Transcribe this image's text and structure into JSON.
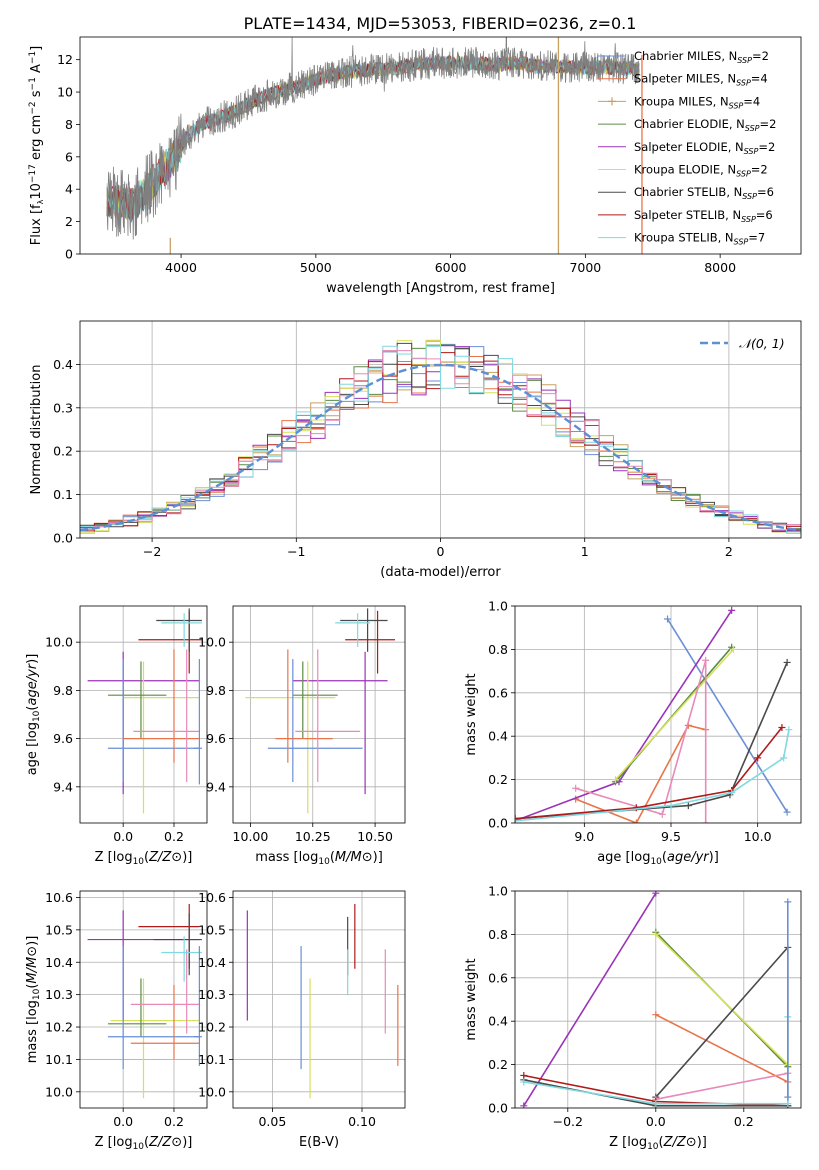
{
  "figure": {
    "suptitle": "PLATE=1434, MJD=53053, FIBERID=0236, z=0.1"
  },
  "chart_data": [
    {
      "id": "spectrum",
      "type": "line",
      "xlabel": "wavelength [Angstrom, rest frame]",
      "ylabel_parts": [
        "Flux [f",
        "λ",
        "10",
        "−17",
        " erg cm",
        "−2",
        " s",
        "−1",
        " A",
        "−1",
        "]"
      ],
      "xlim": [
        3250,
        8600
      ],
      "ylim": [
        0,
        13.4
      ],
      "xticks": [
        4000,
        5000,
        6000,
        7000,
        8000
      ],
      "yticks": [
        0,
        2,
        4,
        6,
        8,
        10,
        12
      ],
      "grid": false,
      "legend_position": "right",
      "legend": [
        {
          "label": "Chabrier MILES, N",
          "sub": "SSP",
          "suffix": "=2",
          "color": "#6a8fd6",
          "marker": "none"
        },
        {
          "label": "Salpeter MILES, N",
          "sub": "SSP",
          "suffix": "=4",
          "color": "#e8744a",
          "marker": "none"
        },
        {
          "label": "Kroupa MILES, N",
          "sub": "SSP",
          "suffix": "=4",
          "color": "#c8a060",
          "marker": "plus"
        },
        {
          "label": "Chabrier ELODIE, N",
          "sub": "SSP",
          "suffix": "=2",
          "color": "#5c8c46",
          "marker": "none"
        },
        {
          "label": "Salpeter ELODIE, N",
          "sub": "SSP",
          "suffix": "=2",
          "color": "#9b33b8",
          "marker": "none"
        },
        {
          "label": "Kroupa ELODIE, N",
          "sub": "SSP",
          "suffix": "=2",
          "color": "#d6e05a",
          "marker": "none"
        },
        {
          "label": "Chabrier STELIB, N",
          "sub": "SSP",
          "suffix": "=6",
          "color": "#4a4a4a",
          "marker": "none"
        },
        {
          "label": "Salpeter STELIB, N",
          "sub": "SSP",
          "suffix": "=6",
          "color": "#b01a1a",
          "marker": "none"
        },
        {
          "label": "Kroupa STELIB, N",
          "sub": "SSP",
          "suffix": "=7",
          "color": "#7fd9e0",
          "marker": "none"
        }
      ],
      "continuum": {
        "x": [
          3450,
          3550,
          3650,
          3750,
          3850,
          3950,
          4050,
          4150,
          4250,
          4350,
          4450,
          4550,
          4650,
          4750,
          4850,
          4950,
          5050,
          5150,
          5300,
          5450,
          5600,
          5750,
          5900,
          6050,
          6200,
          6350,
          6500,
          6650,
          6800,
          6950,
          7100,
          7250,
          7400
        ],
        "y": [
          3.3,
          3.2,
          3.0,
          4.0,
          5.0,
          6.0,
          7.3,
          8.0,
          8.3,
          8.6,
          9.0,
          9.5,
          9.8,
          10.1,
          10.3,
          10.6,
          10.9,
          11.1,
          11.3,
          11.4,
          11.5,
          11.7,
          11.8,
          11.8,
          11.8,
          11.7,
          11.8,
          11.6,
          11.6,
          11.5,
          11.5,
          11.5,
          11.4
        ]
      },
      "noise_series": {
        "name": "",
        "color": "#808080"
      },
      "vertical_spikes": [
        {
          "x": 6800,
          "color": "#c8a060",
          "y_top": 13.4
        },
        {
          "x": 7420,
          "color": "#e8744a",
          "y_top": 12.3
        },
        {
          "x": 3920,
          "color": "#c8a060",
          "y_top": 1.0
        }
      ]
    },
    {
      "id": "residual-histogram",
      "type": "line",
      "xlabel": "(data-model)/error",
      "ylabel": "Normed distribution",
      "xlim": [
        -2.5,
        2.5
      ],
      "ylim": [
        0,
        0.5
      ],
      "xticks": [
        -2,
        -1,
        0,
        1,
        2
      ],
      "yticks": [
        0.0,
        0.1,
        0.2,
        0.3,
        0.4
      ],
      "grid": true,
      "legend_position": "top-right",
      "legend_label": "𝒩(0, 1)",
      "gaussian_color": "#5b8fd6",
      "bin_width": 0.1,
      "colors": [
        "#6a8fd6",
        "#e8744a",
        "#c8a060",
        "#5c8c46",
        "#9b33b8",
        "#d6e05a",
        "#4a4a4a",
        "#b01a1a",
        "#7fd9e0",
        "#e88ab8"
      ]
    },
    {
      "id": "age-vs-z",
      "type": "scatter",
      "xlabel": "Z [log10(Z/Z⊙)]",
      "ylabel": "age  [log10(age/yr)]",
      "xlim": [
        -0.17,
        0.33
      ],
      "ylim": [
        9.25,
        10.15
      ],
      "xticks": [
        0.0,
        0.2
      ],
      "yticks": [
        9.4,
        9.6,
        9.8,
        10.0
      ],
      "grid": true,
      "points": [
        {
          "x": 0.0,
          "xlo": -0.14,
          "xhi": 0.3,
          "y": 9.84,
          "ylo": 9.37,
          "yhi": 9.96,
          "color": "#9b33b8"
        },
        {
          "x": 0.08,
          "xlo": 0.0,
          "xhi": 0.3,
          "y": 9.77,
          "ylo": 9.29,
          "yhi": 9.92,
          "color": "#d6e05a"
        },
        {
          "x": 0.07,
          "xlo": -0.06,
          "xhi": 0.17,
          "y": 9.78,
          "ylo": 9.6,
          "yhi": 9.92,
          "color": "#5c8c46"
        },
        {
          "x": 0.0,
          "xlo": -0.06,
          "xhi": 0.3,
          "y": 9.56,
          "ylo": 9.42,
          "yhi": 9.93,
          "color": "#6a8fd6"
        },
        {
          "x": 0.2,
          "xlo": 0.0,
          "xhi": 0.3,
          "y": 9.6,
          "ylo": 9.5,
          "yhi": 9.97,
          "color": "#e8744a"
        },
        {
          "x": 0.25,
          "xlo": 0.04,
          "xhi": 0.3,
          "y": 9.63,
          "ylo": 9.42,
          "yhi": 9.97,
          "color": "#e88ab8"
        },
        {
          "x": 0.26,
          "xlo": 0.06,
          "xhi": 0.31,
          "y": 10.01,
          "ylo": 9.87,
          "yhi": 10.13,
          "color": "#b01a1a"
        },
        {
          "x": 0.26,
          "xlo": 0.13,
          "xhi": 0.31,
          "y": 10.09,
          "ylo": 9.96,
          "yhi": 10.14,
          "color": "#4a4a4a"
        },
        {
          "x": 0.24,
          "xlo": 0.15,
          "xhi": 0.31,
          "y": 10.08,
          "ylo": 9.98,
          "yhi": 10.12,
          "color": "#7fd9e0"
        },
        {
          "x": 0.3,
          "xlo": 0.28,
          "xhi": 0.31,
          "y": 9.56,
          "ylo": 9.41,
          "yhi": 9.93,
          "color": "#6a8fd6"
        }
      ]
    },
    {
      "id": "age-vs-mass",
      "type": "scatter",
      "xlabel": "mass [log10(M/M⊙)]",
      "ylabel": "",
      "xlim": [
        9.93,
        10.62
      ],
      "ylim": [
        9.25,
        10.15
      ],
      "xticks": [
        10.0,
        10.25,
        10.5
      ],
      "yticks": [
        9.4,
        9.6,
        9.8,
        10.0
      ],
      "grid": true,
      "points": [
        {
          "x": 10.46,
          "xlo": 10.17,
          "xhi": 10.55,
          "y": 9.84,
          "ylo": 9.37,
          "yhi": 9.96,
          "color": "#9b33b8"
        },
        {
          "x": 10.23,
          "xlo": 9.98,
          "xhi": 10.34,
          "y": 9.77,
          "ylo": 9.29,
          "yhi": 9.92,
          "color": "#d6e05a"
        },
        {
          "x": 10.21,
          "xlo": 10.17,
          "xhi": 10.35,
          "y": 9.78,
          "ylo": 9.6,
          "yhi": 9.92,
          "color": "#5c8c46"
        },
        {
          "x": 10.17,
          "xlo": 10.07,
          "xhi": 10.45,
          "y": 9.56,
          "ylo": 9.42,
          "yhi": 9.93,
          "color": "#6a8fd6"
        },
        {
          "x": 10.15,
          "xlo": 10.1,
          "xhi": 10.33,
          "y": 9.6,
          "ylo": 9.5,
          "yhi": 9.97,
          "color": "#e8744a"
        },
        {
          "x": 10.27,
          "xlo": 10.18,
          "xhi": 10.44,
          "y": 9.63,
          "ylo": 9.42,
          "yhi": 9.97,
          "color": "#e88ab8"
        },
        {
          "x": 10.51,
          "xlo": 10.38,
          "xhi": 10.58,
          "y": 10.01,
          "ylo": 9.87,
          "yhi": 10.13,
          "color": "#b01a1a"
        },
        {
          "x": 10.47,
          "xlo": 10.36,
          "xhi": 10.55,
          "y": 10.09,
          "ylo": 9.96,
          "yhi": 10.14,
          "color": "#4a4a4a"
        },
        {
          "x": 10.43,
          "xlo": 10.34,
          "xhi": 10.48,
          "y": 10.08,
          "ylo": 9.98,
          "yhi": 10.12,
          "color": "#7fd9e0"
        }
      ]
    },
    {
      "id": "weight-vs-age",
      "type": "line",
      "xlabel": "age  [log10(age/yr)]",
      "ylabel": "mass weight",
      "xlim": [
        8.6,
        10.25
      ],
      "ylim": [
        0,
        1.0
      ],
      "xticks": [
        9.0,
        9.5,
        10.0
      ],
      "yticks": [
        0.0,
        0.2,
        0.4,
        0.6,
        0.8,
        1.0
      ],
      "grid": true,
      "series": [
        {
          "x": [
            9.48,
            10.17
          ],
          "y": [
            0.94,
            0.05
          ],
          "color": "#6a8fd6"
        },
        {
          "x": [
            8.95,
            9.3,
            9.6,
            9.7
          ],
          "y": [
            0.11,
            0.0,
            0.45,
            0.43
          ],
          "color": "#e8744a"
        },
        {
          "x": [
            8.6,
            9.2,
            9.85
          ],
          "y": [
            0.01,
            0.19,
            0.98
          ],
          "color": "#9b33b8"
        },
        {
          "x": [
            9.18,
            9.85
          ],
          "y": [
            0.19,
            0.81
          ],
          "color": "#5c8c46"
        },
        {
          "x": [
            9.18,
            9.86
          ],
          "y": [
            0.2,
            0.8
          ],
          "color": "#d6e05a"
        },
        {
          "x": [
            8.95,
            9.45,
            9.7,
            9.7
          ],
          "y": [
            0.16,
            0.04,
            0.75,
            0.0
          ],
          "color": "#e88ab8"
        },
        {
          "x": [
            8.6,
            9.6,
            9.84,
            10.17
          ],
          "y": [
            0.02,
            0.08,
            0.13,
            0.74
          ],
          "color": "#4a4a4a"
        },
        {
          "x": [
            8.6,
            9.3,
            9.85,
            10.0,
            10.14
          ],
          "y": [
            0.02,
            0.07,
            0.15,
            0.3,
            0.44
          ],
          "color": "#b01a1a"
        },
        {
          "x": [
            8.6,
            9.5,
            9.85,
            10.15,
            10.18
          ],
          "y": [
            0.01,
            0.08,
            0.14,
            0.3,
            0.43
          ],
          "color": "#7fd9e0"
        }
      ]
    },
    {
      "id": "mass-vs-z",
      "type": "scatter",
      "xlabel": "Z [log10(Z/Z⊙)]",
      "ylabel": "mass [log10(M/M⊙)]",
      "xlim": [
        -0.17,
        0.33
      ],
      "ylim": [
        9.95,
        10.62
      ],
      "xticks": [
        0.0,
        0.2
      ],
      "yticks": [
        10.0,
        10.1,
        10.2,
        10.3,
        10.4,
        10.5,
        10.6
      ],
      "grid": true,
      "points": [
        {
          "x": 0.0,
          "xlo": -0.14,
          "xhi": 0.3,
          "y": 10.47,
          "ylo": 10.22,
          "yhi": 10.56,
          "color": "#9b33b8"
        },
        {
          "x": 0.08,
          "xlo": -0.05,
          "xhi": 0.3,
          "y": 10.22,
          "ylo": 9.98,
          "yhi": 10.35,
          "color": "#d6e05a"
        },
        {
          "x": 0.07,
          "xlo": -0.06,
          "xhi": 0.17,
          "y": 10.21,
          "ylo": 10.17,
          "yhi": 10.35,
          "color": "#5c8c46"
        },
        {
          "x": 0.0,
          "xlo": -0.06,
          "xhi": 0.3,
          "y": 10.17,
          "ylo": 10.07,
          "yhi": 10.45,
          "color": "#6a8fd6"
        },
        {
          "x": 0.2,
          "xlo": 0.03,
          "xhi": 0.3,
          "y": 10.15,
          "ylo": 10.1,
          "yhi": 10.33,
          "color": "#e8744a"
        },
        {
          "x": 0.25,
          "xlo": 0.03,
          "xhi": 0.3,
          "y": 10.27,
          "ylo": 10.18,
          "yhi": 10.44,
          "color": "#e88ab8"
        },
        {
          "x": 0.26,
          "xlo": 0.06,
          "xhi": 0.3,
          "y": 10.51,
          "ylo": 10.38,
          "yhi": 10.58,
          "color": "#b01a1a"
        },
        {
          "x": 0.26,
          "xlo": 0.12,
          "xhi": 0.31,
          "y": 10.47,
          "ylo": 10.36,
          "yhi": 10.55,
          "color": "#4a4a4a"
        },
        {
          "x": 0.24,
          "xlo": 0.15,
          "xhi": 0.31,
          "y": 10.43,
          "ylo": 10.34,
          "yhi": 10.48,
          "color": "#7fd9e0"
        },
        {
          "x": 0.3,
          "xlo": 0.28,
          "xhi": 0.31,
          "y": 10.17,
          "ylo": 10.08,
          "yhi": 10.45,
          "color": "#6a8fd6"
        }
      ]
    },
    {
      "id": "mass-vs-ebv",
      "type": "scatter",
      "xlabel": "E(B-V)",
      "ylabel": "",
      "xlim": [
        0.028,
        0.124
      ],
      "ylim": [
        9.95,
        10.62
      ],
      "xticks": [
        0.05,
        0.1
      ],
      "yticks": [
        10.0,
        10.1,
        10.2,
        10.3,
        10.4,
        10.5,
        10.6
      ],
      "grid": true,
      "points": [
        {
          "x": 0.036,
          "ylo": 10.22,
          "yhi": 10.56,
          "color": "#9b33b8"
        },
        {
          "x": 0.066,
          "ylo": 10.07,
          "yhi": 10.45,
          "color": "#6a8fd6"
        },
        {
          "x": 0.071,
          "ylo": 9.98,
          "yhi": 10.35,
          "color": "#d6e05a"
        },
        {
          "x": 0.092,
          "ylo": 10.36,
          "yhi": 10.54,
          "color": "#4a4a4a"
        },
        {
          "x": 0.092,
          "ylo": 10.3,
          "yhi": 10.44,
          "color": "#7fd9e0"
        },
        {
          "x": 0.096,
          "ylo": 10.38,
          "yhi": 10.58,
          "color": "#b01a1a"
        },
        {
          "x": 0.113,
          "ylo": 10.18,
          "yhi": 10.44,
          "color": "#e88ab8"
        },
        {
          "x": 0.12,
          "ylo": 10.08,
          "yhi": 10.33,
          "color": "#e8744a"
        }
      ]
    },
    {
      "id": "weight-vs-z",
      "type": "line",
      "xlabel": "Z [log10(Z/Z⊙)]",
      "ylabel": "mass weight",
      "xlim": [
        -0.32,
        0.33
      ],
      "ylim": [
        0,
        1.0
      ],
      "xticks": [
        -0.2,
        0.0,
        0.2
      ],
      "yticks": [
        0.0,
        0.2,
        0.4,
        0.6,
        0.8,
        1.0
      ],
      "grid": true,
      "series": [
        {
          "x": [
            -0.3,
            0.0
          ],
          "y": [
            0.01,
            0.99
          ],
          "color": "#9b33b8"
        },
        {
          "x": [
            0.0,
            0.3
          ],
          "y": [
            0.43,
            0.12
          ],
          "color": "#e8744a"
        },
        {
          "x": [
            0.0,
            0.3
          ],
          "y": [
            0.81,
            0.19
          ],
          "color": "#5c8c46"
        },
        {
          "x": [
            0.0,
            0.3
          ],
          "y": [
            0.8,
            0.2
          ],
          "color": "#d6e05a"
        },
        {
          "x": [
            0.0,
            0.3,
            0.3
          ],
          "y": [
            0.05,
            0.74,
            0.01
          ],
          "color": "#4a4a4a"
        },
        {
          "x": [
            0.0,
            0.3
          ],
          "y": [
            0.04,
            0.16
          ],
          "color": "#e88ab8"
        },
        {
          "x": [
            -0.3,
            0.0,
            0.3
          ],
          "y": [
            0.15,
            0.03,
            0.01
          ],
          "color": "#b01a1a"
        },
        {
          "x": [
            -0.3,
            0.0,
            0.3
          ],
          "y": [
            0.13,
            0.01,
            0.01
          ],
          "color": "#4a4a4a"
        },
        {
          "x": [
            -0.3,
            0.0,
            0.3,
            0.3
          ],
          "y": [
            0.12,
            0.02,
            0.02,
            0.42
          ],
          "color": "#7fd9e0"
        },
        {
          "x": [
            0.3,
            0.3
          ],
          "y": [
            0.05,
            0.95
          ],
          "color": "#6a8fd6"
        }
      ]
    }
  ]
}
